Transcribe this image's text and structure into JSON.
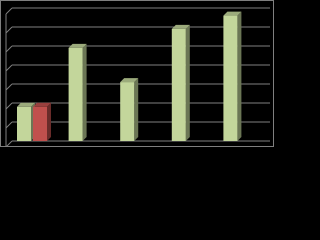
{
  "chart_data": {
    "type": "bar",
    "categories": [
      null,
      null,
      null,
      null,
      null
    ],
    "series": [
      {
        "color": "#c3d69b",
        "values": [
          1.8,
          4.9,
          3.1,
          5.9,
          6.6
        ]
      },
      {
        "color": "#c0504d",
        "values": [
          1.8,
          null,
          null,
          null,
          null
        ]
      }
    ],
    "ylim": [
      0,
      7
    ],
    "yticks": [
      0,
      1,
      2,
      3,
      4,
      5,
      6,
      7
    ],
    "grid": true
  }
}
